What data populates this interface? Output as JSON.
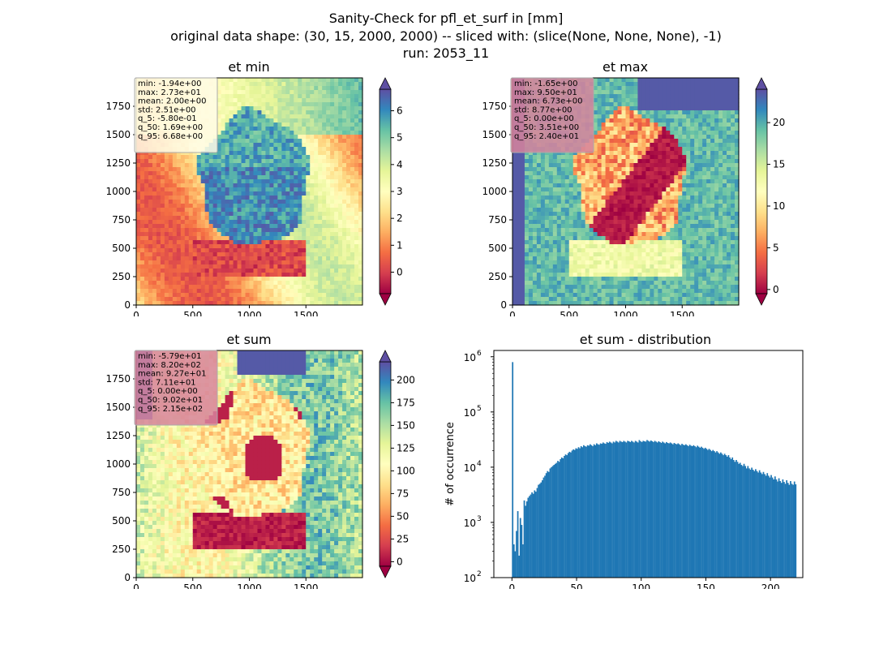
{
  "figure": {
    "title_lines": [
      "Sanity-Check for pfl_et_surf in [mm]",
      "original data shape: (30, 15, 2000, 2000) -- sliced with: (slice(None, None, None), -1)",
      "run: 2053_11"
    ]
  },
  "colors": {
    "spectral": [
      "#9e0142",
      "#d53e4f",
      "#f46d43",
      "#fdae61",
      "#fee08b",
      "#ffffbf",
      "#e6f598",
      "#abdda4",
      "#66c2a5",
      "#3288bd",
      "#5e4fa2"
    ],
    "hist_bar": "#1f77b4",
    "stats_box_min": "#fffbe6",
    "stats_box_other": "#d7849c"
  },
  "chart_data": [
    {
      "type": "heatmap",
      "title": "et min",
      "xlim": [
        0,
        2000
      ],
      "ylim": [
        0,
        2000
      ],
      "xticks": [
        "0",
        "500",
        "1000",
        "1500"
      ],
      "yticks": [
        "0",
        "250",
        "500",
        "750",
        "1000",
        "1250",
        "1500",
        "1750"
      ],
      "colorbar": {
        "min": -0.8,
        "max": 6.8,
        "ticks": [
          "6",
          "5",
          "4",
          "3",
          "2",
          "1",
          "0"
        ],
        "tick_values": [
          6,
          5,
          4,
          3,
          2,
          1,
          0
        ]
      },
      "stats": [
        "min: -1.94e+00",
        "max: 2.73e+01",
        "mean: 2.00e+00",
        "std: 2.51e+00",
        "q_5: -5.80e-01",
        "q_50: 1.69e+00",
        "q_95: 6.68e+00"
      ]
    },
    {
      "type": "heatmap",
      "title": "et max",
      "xlim": [
        0,
        2000
      ],
      "ylim": [
        0,
        2000
      ],
      "xticks": [
        "0",
        "500",
        "1000",
        "1500"
      ],
      "yticks": [
        "0",
        "250",
        "500",
        "750",
        "1000",
        "1250",
        "1500",
        "1750"
      ],
      "colorbar": {
        "min": -0.5,
        "max": 24,
        "ticks": [
          "20",
          "15",
          "10",
          "5",
          "0"
        ],
        "tick_values": [
          20,
          15,
          10,
          5,
          0
        ]
      },
      "stats": [
        "min: -1.65e+00",
        "max: 9.50e+01",
        "mean: 6.73e+00",
        "std: 8.77e+00",
        "q_5: 0.00e+00",
        "q_50: 3.51e+00",
        "q_95: 2.40e+01"
      ]
    },
    {
      "type": "heatmap",
      "title": "et sum",
      "xlim": [
        0,
        2000
      ],
      "ylim": [
        0,
        2000
      ],
      "xticks": [
        "0",
        "500",
        "1000",
        "1500"
      ],
      "yticks": [
        "0",
        "250",
        "500",
        "750",
        "1000",
        "1250",
        "1500",
        "1750"
      ],
      "colorbar": {
        "min": -5,
        "max": 220,
        "ticks": [
          "200",
          "175",
          "150",
          "125",
          "100",
          "75",
          "50",
          "25",
          "0"
        ],
        "tick_values": [
          200,
          175,
          150,
          125,
          100,
          75,
          50,
          25,
          0
        ]
      },
      "stats": [
        "min: -5.79e+01",
        "max: 8.20e+02",
        "mean: 9.27e+01",
        "std: 7.11e+01",
        "q_5: 0.00e+00",
        "q_50: 9.02e+01",
        "q_95: 2.15e+02"
      ]
    },
    {
      "type": "bar",
      "title": "et sum - distribution",
      "ylabel": "# of occurrence",
      "xlim": [
        -14,
        225
      ],
      "ylim": [
        100,
        1300000
      ],
      "yscale": "log",
      "xticks": [
        "0",
        "50",
        "100",
        "150",
        "200"
      ],
      "xtick_values": [
        0,
        50,
        100,
        150,
        200
      ],
      "yticks": [
        "10",
        "10",
        "10",
        "10",
        "10"
      ],
      "ytick_exponents": [
        "2",
        "3",
        "4",
        "5",
        "6"
      ],
      "ytick_values": [
        100,
        1000,
        10000,
        100000,
        1000000
      ],
      "bin_start": 0,
      "bin_width": 1,
      "values": [
        800000,
        400,
        300,
        700,
        1600,
        250,
        1200,
        900,
        400,
        2500,
        2000,
        2400,
        2800,
        3000,
        3200,
        3500,
        3300,
        3800,
        3600,
        4200,
        4800,
        5000,
        5300,
        5800,
        6500,
        7000,
        7800,
        8500,
        8200,
        9500,
        10000,
        10500,
        11000,
        11500,
        12000,
        13000,
        12500,
        14000,
        15000,
        14500,
        16000,
        17000,
        16500,
        18000,
        19000,
        18500,
        20000,
        21000,
        20500,
        22000,
        21500,
        23000,
        22000,
        24000,
        23000,
        25000,
        24000,
        23500,
        25000,
        24500,
        26000,
        25000,
        24000,
        26000,
        25000,
        27000,
        26000,
        25500,
        27000,
        26500,
        28000,
        27000,
        26500,
        28500,
        27500,
        29000,
        28000,
        27000,
        29000,
        28000,
        30000,
        29000,
        28000,
        30000,
        29000,
        28500,
        30000,
        29000,
        28000,
        30000,
        29500,
        28500,
        30000,
        29000,
        28000,
        30000,
        29000,
        28000,
        31000,
        29500,
        28500,
        30000,
        29500,
        29000,
        31000,
        30000,
        29000,
        30500,
        29500,
        28500,
        30000,
        29000,
        28000,
        29500,
        28500,
        27500,
        29000,
        28000,
        27000,
        28500,
        27500,
        27000,
        28000,
        27000,
        26000,
        27500,
        26500,
        26000,
        27000,
        26000,
        25000,
        26500,
        25500,
        25000,
        26000,
        25000,
        24000,
        25500,
        24500,
        24000,
        25000,
        24000,
        23000,
        24500,
        23500,
        22500,
        23500,
        22500,
        21500,
        22500,
        21500,
        20500,
        21500,
        20500,
        19500,
        20500,
        19500,
        18500,
        19500,
        18500,
        17500,
        18500,
        17500,
        16500,
        17500,
        16500,
        15500,
        16500,
        15000,
        14000,
        15000,
        13500,
        12500,
        13500,
        12500,
        11500,
        12000,
        11000,
        10500,
        11500,
        10500,
        9500,
        10500,
        9500,
        9000,
        9800,
        9000,
        8500,
        9200,
        8500,
        8000,
        8800,
        8000,
        7500,
        8200,
        7500,
        7000,
        7800,
        7000,
        6500,
        7200,
        6500,
        6000,
        6800,
        6000,
        5500,
        6300,
        5600,
        5200,
        6000,
        5400,
        5000,
        5800,
        5200,
        4800,
        5600,
        5000,
        4800,
        5500,
        4900
      ]
    }
  ]
}
